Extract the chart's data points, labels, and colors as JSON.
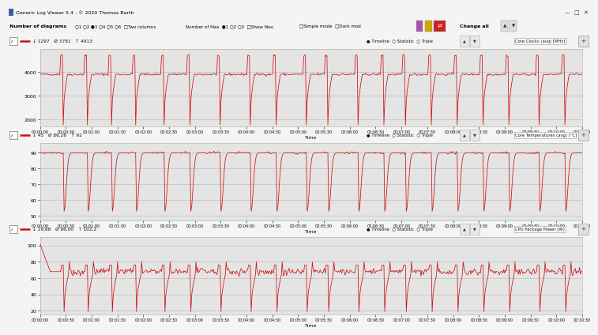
{
  "title_bar": "Generic Log Viewer 5.4 - © 2020 Thomas Barth",
  "bg_color": "#f4f4f4",
  "plot_bg_color": "#e4e4e4",
  "line_color": "#cc1111",
  "grid_color": "#c0c0c0",
  "toolbar_bg": "#f0f0f0",
  "header_bg": "#f0f0f0",
  "titlebar_bg": "#ffffff",
  "total_seconds": 630,
  "panels": [
    {
      "label": "Core Clocks (avg) [MHz]",
      "stats_left": "↓ 1297   Ø 3781   ↑ 4913",
      "ylim": [
        1700,
        4950
      ],
      "yticks": [
        2000,
        3000,
        4000
      ],
      "baseline": 3900,
      "spike_down": 1780,
      "spike_up": 4730,
      "noise": 70,
      "type": "clock"
    },
    {
      "label": "Core Temperatures (avg) [°C]",
      "stats_left": "↓ 45   Ø 86,26   ↑ 92",
      "ylim": [
        47,
        96
      ],
      "yticks": [
        50,
        60,
        70,
        80,
        90
      ],
      "baseline": 90,
      "spike_down": 53,
      "spike_up": 92,
      "noise": 1.0,
      "type": "temp"
    },
    {
      "label": "CPU Package Power [W]",
      "stats_left": "↓ 19,68   Ø 66,00   ↑ 102,2",
      "ylim": [
        15,
        110
      ],
      "yticks": [
        20,
        40,
        60,
        80,
        100
      ],
      "baseline": 68,
      "spike_down": 19,
      "spike_up": 102,
      "noise": 4,
      "type": "power"
    }
  ],
  "xlabel": "Time",
  "time_labels": [
    "00:00:00",
    "00:00:30",
    "00:01:00",
    "00:01:30",
    "00:02:00",
    "00:02:30",
    "00:03:00",
    "00:03:30",
    "00:04:00",
    "00:04:30",
    "00:05:00",
    "00:05:30",
    "00:06:00",
    "00:06:30",
    "00:07:00",
    "00:07:30",
    "00:08:00",
    "00:08:30",
    "00:09:00",
    "00:09:30",
    "00:10:00",
    "00:10:30"
  ],
  "spike_times": [
    28,
    56,
    84,
    112,
    145,
    175,
    210,
    245,
    275,
    310,
    335,
    370,
    400,
    425,
    455,
    485,
    515,
    545,
    580,
    610
  ]
}
